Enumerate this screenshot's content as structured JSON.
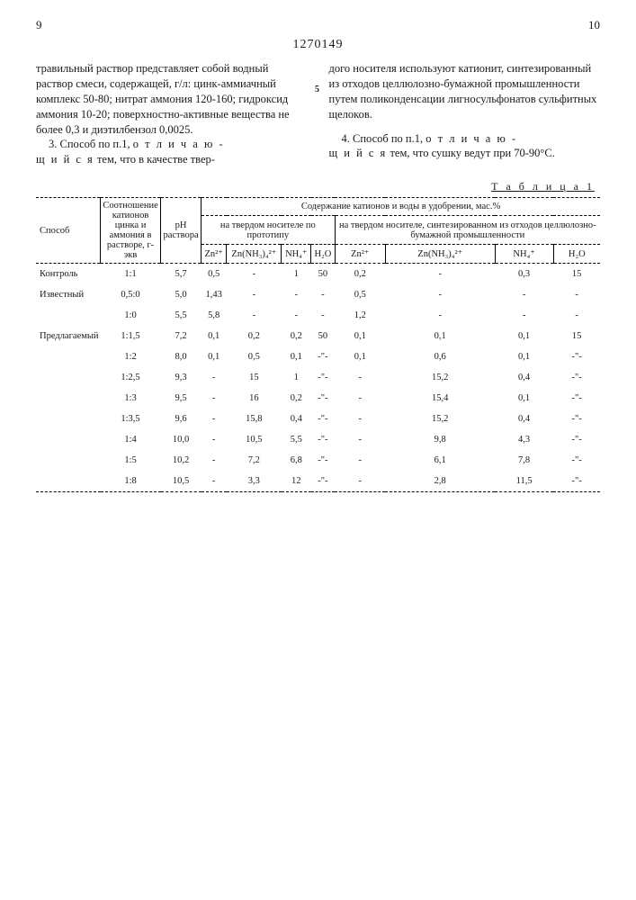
{
  "header": {
    "left_page": "9",
    "right_page": "10",
    "patent_number": "1270149"
  },
  "left_column": {
    "p1": "травильный раствор представляет собой водный раствор смеси, содержащей, г/л: цинк-аммиачный комплекс 50-80; нитрат аммония 120-160; гидроксид аммония 10-20; поверхностно-активные вещества не более 0,3 и диэтилбензол 0,0025.",
    "p2_lead": "3. Способ по п.1, ",
    "p2_spaced1": "о т л и ч а ю -",
    "p2_spaced2": "щ и й с я",
    "p2_tail": " тем, что в качестве твер-"
  },
  "right_column": {
    "p1": "дого носителя используют катионит, синтезированный из отходов целлюлозно-бумажной промышленности путем поликонденсации лигносульфонатов сульфитных щелоков.",
    "p2_lead": "4. Способ по п.1, ",
    "p2_spaced1": "о т л и ч а ю -",
    "p2_spaced2": "щ и й с я",
    "p2_tail": " тем, что сушку ведут при 70-90°С."
  },
  "line_marker": "5",
  "table": {
    "caption": "Т а б л и ц а  1",
    "head": {
      "c1": "Способ",
      "c2": "Соотношение катионов цинка и аммония в растворе, г-экв",
      "c3": "pH раствора",
      "group": "Содержание катионов и воды в удобрении, мас.%",
      "sub1": "на твердом носителе по прототипу",
      "sub2": "на твердом носителе, синтезированном из отходов целлюлозно-бумажной промышленности",
      "zn": "Zn²⁺",
      "znnh": "Zn(NH₃)₄²⁺",
      "nh": "NH₄⁺",
      "h2o": "H₂O"
    },
    "rows": [
      {
        "m": "Контроль",
        "r": "1:1",
        "ph": "5,7",
        "a": "0,5",
        "b": "-",
        "c": "1",
        "d": "50",
        "e": "0,2",
        "f": "-",
        "g": "0,3",
        "h": "15"
      },
      {
        "m": "Известный",
        "r": "0,5:0",
        "ph": "5,0",
        "a": "1,43",
        "b": "-",
        "c": "-",
        "d": "-",
        "e": "0,5",
        "f": "-",
        "g": "-",
        "h": "-"
      },
      {
        "m": "",
        "r": "1:0",
        "ph": "5,5",
        "a": "5,8",
        "b": "-",
        "c": "-",
        "d": "-",
        "e": "1,2",
        "f": "-",
        "g": "-",
        "h": "-"
      },
      {
        "m": "Предлагаемый",
        "r": "1:1,5",
        "ph": "7,2",
        "a": "0,1",
        "b": "0,2",
        "c": "0,2",
        "d": "50",
        "e": "0,1",
        "f": "0,1",
        "g": "0,1",
        "h": "15"
      },
      {
        "m": "",
        "r": "1:2",
        "ph": "8,0",
        "a": "0,1",
        "b": "0,5",
        "c": "0,1",
        "d": "-\"-",
        "e": "0,1",
        "f": "0,6",
        "g": "0,1",
        "h": "-\"-"
      },
      {
        "m": "",
        "r": "1:2,5",
        "ph": "9,3",
        "a": "-",
        "b": "15",
        "c": "1",
        "d": "-\"-",
        "e": "-",
        "f": "15,2",
        "g": "0,4",
        "h": "-\"-"
      },
      {
        "m": "",
        "r": "1:3",
        "ph": "9,5",
        "a": "-",
        "b": "16",
        "c": "0,2",
        "d": "-\"-",
        "e": "-",
        "f": "15,4",
        "g": "0,1",
        "h": "-\"-"
      },
      {
        "m": "",
        "r": "1:3,5",
        "ph": "9,6",
        "a": "-",
        "b": "15,8",
        "c": "0,4",
        "d": "-\"-",
        "e": "-",
        "f": "15,2",
        "g": "0,4",
        "h": "-\"-"
      },
      {
        "m": "",
        "r": "1:4",
        "ph": "10,0",
        "a": "-",
        "b": "10,5",
        "c": "5,5",
        "d": "-\"-",
        "e": "-",
        "f": "9,8",
        "g": "4,3",
        "h": "-\"-"
      },
      {
        "m": "",
        "r": "1:5",
        "ph": "10,2",
        "a": "-",
        "b": "7,2",
        "c": "6,8",
        "d": "-\"-",
        "e": "-",
        "f": "6,1",
        "g": "7,8",
        "h": "-\"-"
      },
      {
        "m": "",
        "r": "1:8",
        "ph": "10,5",
        "a": "-",
        "b": "3,3",
        "c": "12",
        "d": "-\"-",
        "e": "-",
        "f": "2,8",
        "g": "11,5",
        "h": "-\"-"
      }
    ]
  }
}
